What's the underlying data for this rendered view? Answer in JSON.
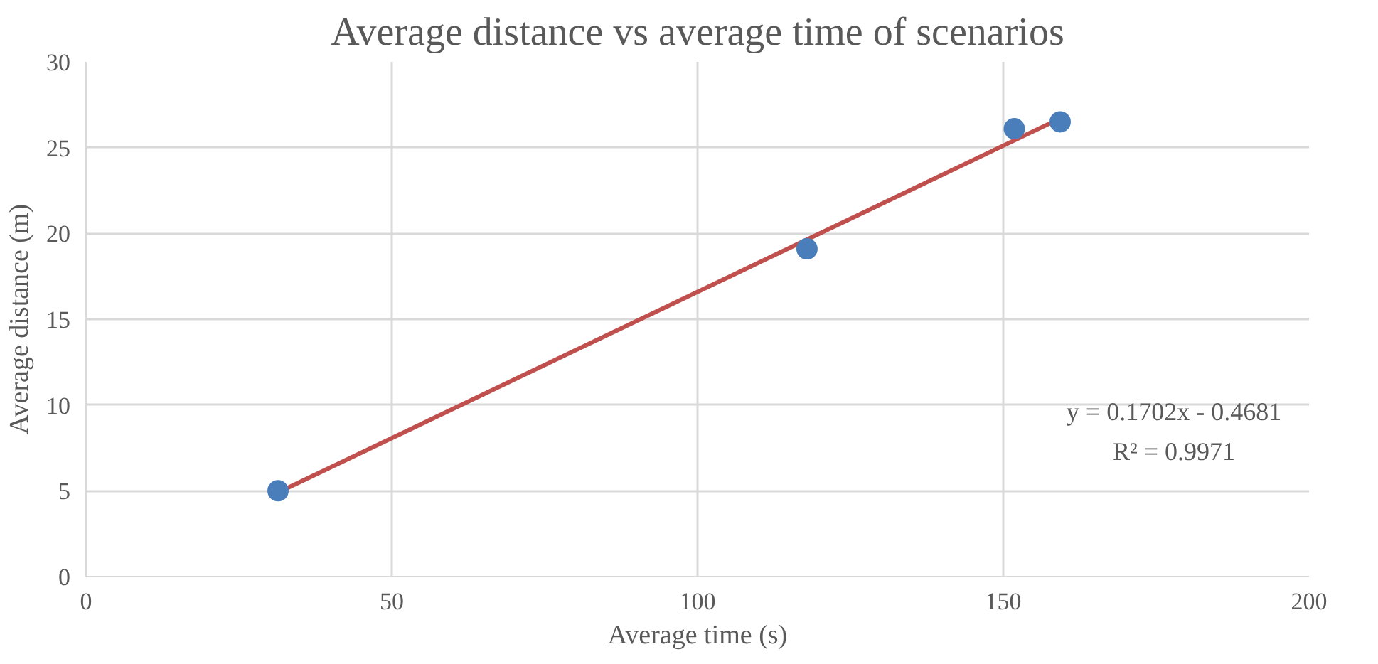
{
  "chart_data": {
    "type": "scatter",
    "title": "Average distance vs average time of scenarios",
    "xlabel": "Average time (s)",
    "ylabel": "Average distance (m)",
    "series": [
      {
        "color": "#4a7ebb",
        "x": [
          31.4,
          117.9,
          151.8,
          159.3
        ],
        "values": [
          5.0,
          19.1,
          26.1,
          26.5
        ],
        "marker": "circle"
      },
      {
        "type": "line",
        "color": "#c0504d",
        "x": [
          31.4,
          159.3
        ],
        "values": [
          4.9,
          26.7
        ],
        "marker": "none"
      }
    ],
    "annotations": [
      "y = 0.1702x - 0.4681",
      "R² = 0.9971"
    ],
    "xlim": [
      0,
      200
    ],
    "ylim": [
      0,
      30
    ],
    "xticks": [
      0,
      50,
      100,
      150,
      200
    ],
    "yticks": [
      0,
      5,
      10,
      15,
      20,
      25,
      30
    ],
    "grid": true
  }
}
